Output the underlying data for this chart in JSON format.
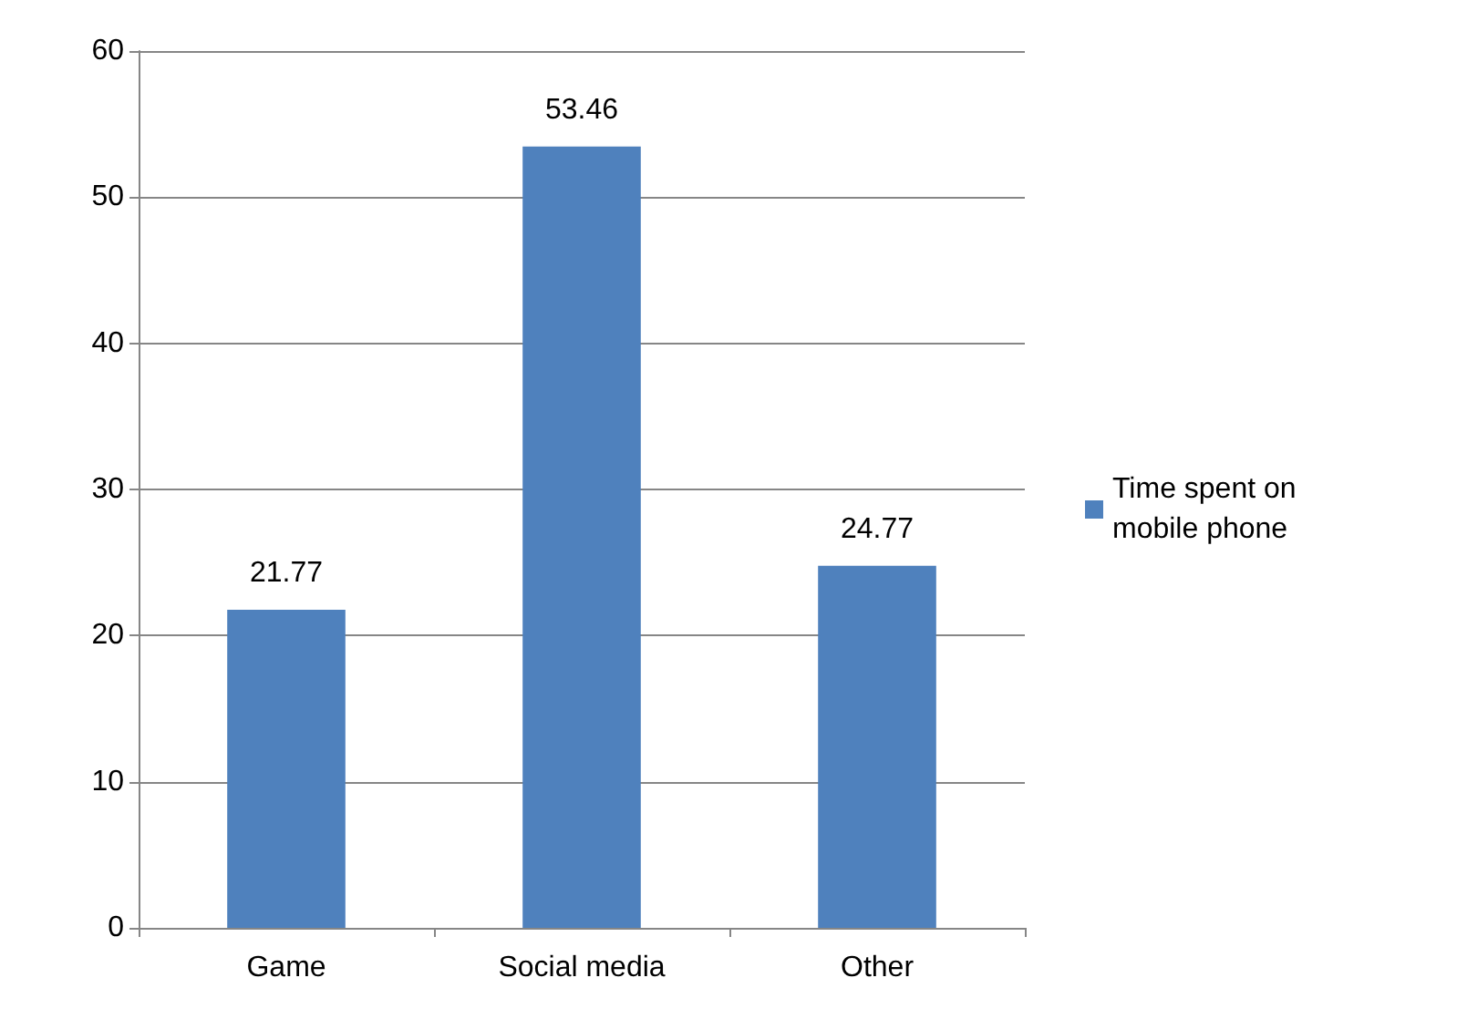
{
  "chart_data": {
    "type": "bar",
    "categories": [
      "Game",
      "Social media",
      "Other"
    ],
    "series": [
      {
        "name": "Time spent on mobile phone",
        "color": "#4f81bd",
        "values": [
          21.77,
          53.46,
          24.77
        ]
      }
    ],
    "ylim": [
      0,
      60
    ],
    "yticks": [
      0,
      10,
      20,
      30,
      40,
      50,
      60
    ],
    "grid": "y",
    "legend": "right",
    "data_labels": true
  }
}
